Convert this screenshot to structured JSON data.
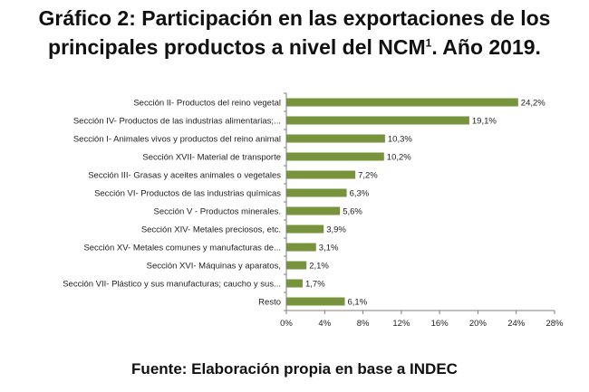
{
  "title": {
    "line1": "Gráfico 2: Participación en las exportaciones de los",
    "line2_main": "principales productos a nivel del NCM",
    "line2_sup": "1",
    "line2_end": ". Año 2019."
  },
  "source": "Fuente: Elaboración propia en base a INDEC",
  "colors": {
    "bar": "#77933c",
    "axis": "#7f7f7f",
    "grid": "#d9d9d9"
  },
  "chart_data": {
    "type": "bar",
    "orientation": "horizontal",
    "categories": [
      "Sección II- Productos del reino vegetal",
      "Sección IV- Productos de las industrias alimentarias;...",
      "Sección I- Animales vivos y productos del reino animal",
      "Sección XVII- Material de transporte",
      "Sección III- Grasas y aceites animales o vegetales",
      "Sección VI- Productos de las industrias químicas",
      "Sección V - Productos minerales.",
      "Sección XIV- Metales preciosos, etc.",
      "Sección XV- Metales comunes y manufacturas de...",
      "Sección XVI- Máquinas y aparatos,",
      "Sección VII- Plástico y sus manufacturas; caucho y sus...",
      "Resto"
    ],
    "values": [
      24.2,
      19.1,
      10.3,
      10.2,
      7.2,
      6.3,
      5.6,
      3.9,
      3.1,
      2.1,
      1.7,
      6.1
    ],
    "value_labels": [
      "24,2%",
      "19,1%",
      "10,3%",
      "10,2%",
      "7,2%",
      "6,3%",
      "5,6%",
      "3,9%",
      "3,1%",
      "2,1%",
      "1,7%",
      "6,1%"
    ],
    "x_ticks": [
      0,
      4,
      8,
      12,
      16,
      20,
      24,
      28
    ],
    "x_tick_labels": [
      "0%",
      "4%",
      "8%",
      "12%",
      "16%",
      "20%",
      "24%",
      "28%"
    ],
    "xlim": [
      0,
      28
    ],
    "grid": false,
    "legend": "none"
  }
}
